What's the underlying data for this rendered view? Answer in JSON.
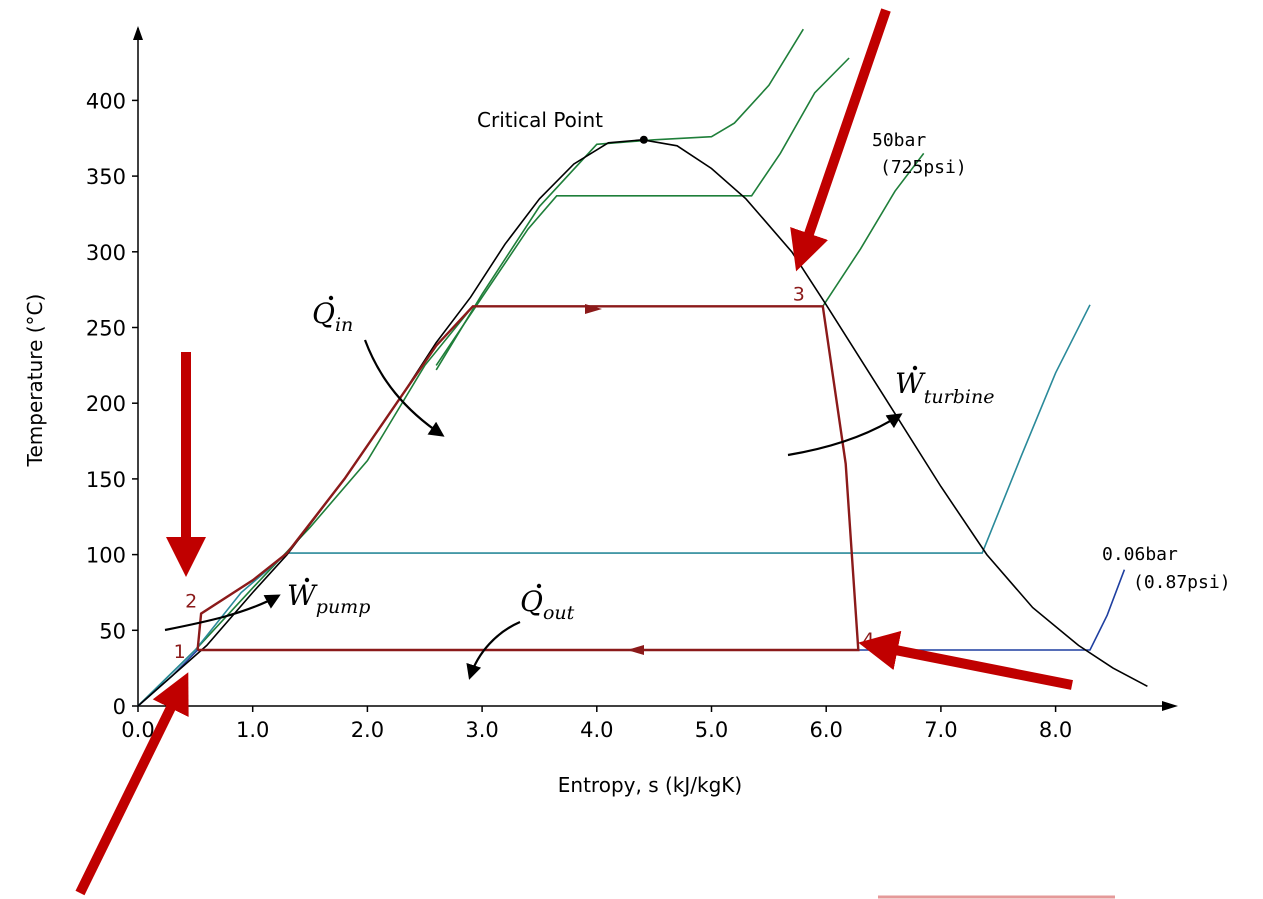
{
  "chart_data": {
    "type": "line",
    "title": "",
    "xlabel": "Entropy, s (kJ/kgK)",
    "ylabel": "Temperature (°C)",
    "xlim": [
      0,
      9
    ],
    "ylim": [
      0,
      430
    ],
    "x_ticks": [
      0,
      1,
      2,
      3,
      4,
      5,
      6,
      7,
      8
    ],
    "x_tick_labels": [
      "0.0",
      "1.0",
      "2.0",
      "3.0",
      "4.0",
      "5.0",
      "6.0",
      "7.0",
      "8.0"
    ],
    "y_ticks": [
      0,
      50,
      100,
      150,
      200,
      250,
      300,
      350,
      400
    ],
    "y_tick_labels": [
      "0",
      "50",
      "100",
      "150",
      "200",
      "250",
      "300",
      "350",
      "400"
    ],
    "grid": false,
    "colors": {
      "dome": "#000000",
      "cycle": "#8b1a1a",
      "isobar_high": "#1f7f3a",
      "isobar_mid": "#2a8a9a",
      "isobar_low": "#1f3fa0",
      "annotation_arrow": "#c00000"
    },
    "saturation_dome": {
      "x": [
        0.0,
        0.3,
        0.6,
        1.0,
        1.3,
        1.8,
        2.3,
        2.6,
        2.9,
        3.2,
        3.5,
        3.8,
        4.1,
        4.4,
        4.7,
        5.0,
        5.3,
        5.7,
        6.0,
        6.5,
        7.0,
        7.4,
        7.8,
        8.2,
        8.5,
        8.8
      ],
      "y": [
        0,
        20,
        40,
        75,
        100,
        150,
        205,
        240,
        270,
        305,
        335,
        358,
        372,
        374,
        370,
        355,
        335,
        300,
        265,
        205,
        145,
        100,
        65,
        40,
        25,
        13
      ]
    },
    "critical_point": {
      "label": "Critical Point",
      "s": 4.41,
      "T": 374
    },
    "isobars": [
      {
        "name": "50bar",
        "name2": "(725psi)",
        "color_key": "isobar_high",
        "x": [
          0.0,
          0.5,
          1.0,
          1.5,
          2.0,
          2.5,
          2.92,
          5.97,
          6.3,
          6.6,
          6.85
        ],
        "y": [
          0,
          37,
          78,
          118,
          162,
          225,
          264,
          264,
          302,
          340,
          365
        ]
      },
      {
        "name": "",
        "color_key": "isobar_high",
        "x": [
          2.6,
          3.0,
          3.4,
          3.65,
          5.35,
          5.6,
          5.9,
          6.2
        ],
        "y": [
          225,
          270,
          315,
          337,
          337,
          365,
          405,
          428
        ]
      },
      {
        "name": "",
        "color_key": "isobar_high",
        "x": [
          2.6,
          3.0,
          3.5,
          4.0,
          4.5,
          5.0,
          5.2,
          5.5,
          5.8
        ],
        "y": [
          222,
          272,
          330,
          371,
          374,
          376,
          385,
          410,
          447
        ]
      },
      {
        "name": "",
        "color_key": "isobar_mid",
        "x": [
          0.0,
          0.5,
          0.9,
          1.3,
          7.36,
          7.7,
          8.0,
          8.3
        ],
        "y": [
          0,
          37,
          75,
          101,
          101,
          165,
          220,
          265
        ]
      },
      {
        "name": "0.06bar",
        "name2": "(0.87psi)",
        "color_key": "isobar_low",
        "x": [
          0.0,
          0.3,
          0.52,
          8.3,
          8.45,
          8.6
        ],
        "y": [
          0,
          20,
          37,
          37,
          60,
          90
        ]
      }
    ],
    "cycle": {
      "x": [
        0.52,
        0.55,
        1.0,
        1.3,
        1.8,
        2.3,
        2.6,
        2.92,
        5.97,
        6.17,
        6.28,
        0.52
      ],
      "y": [
        37,
        61,
        83,
        101,
        150,
        205,
        238,
        264,
        264,
        160,
        37,
        37
      ]
    },
    "state_points": [
      {
        "label": "1",
        "s": 0.52,
        "T": 37
      },
      {
        "label": "2",
        "s": 0.55,
        "T": 61
      },
      {
        "label": "3",
        "s": 5.97,
        "T": 264
      },
      {
        "label": "4",
        "s": 6.28,
        "T": 37
      }
    ],
    "annotations": {
      "q_in": {
        "symbol": "Q",
        "sub": "in"
      },
      "q_out": {
        "symbol": "Q",
        "sub": "out"
      },
      "w_pump": {
        "symbol": "W",
        "sub": "pump"
      },
      "w_turbine": {
        "symbol": "W",
        "sub": "turbine"
      }
    }
  }
}
